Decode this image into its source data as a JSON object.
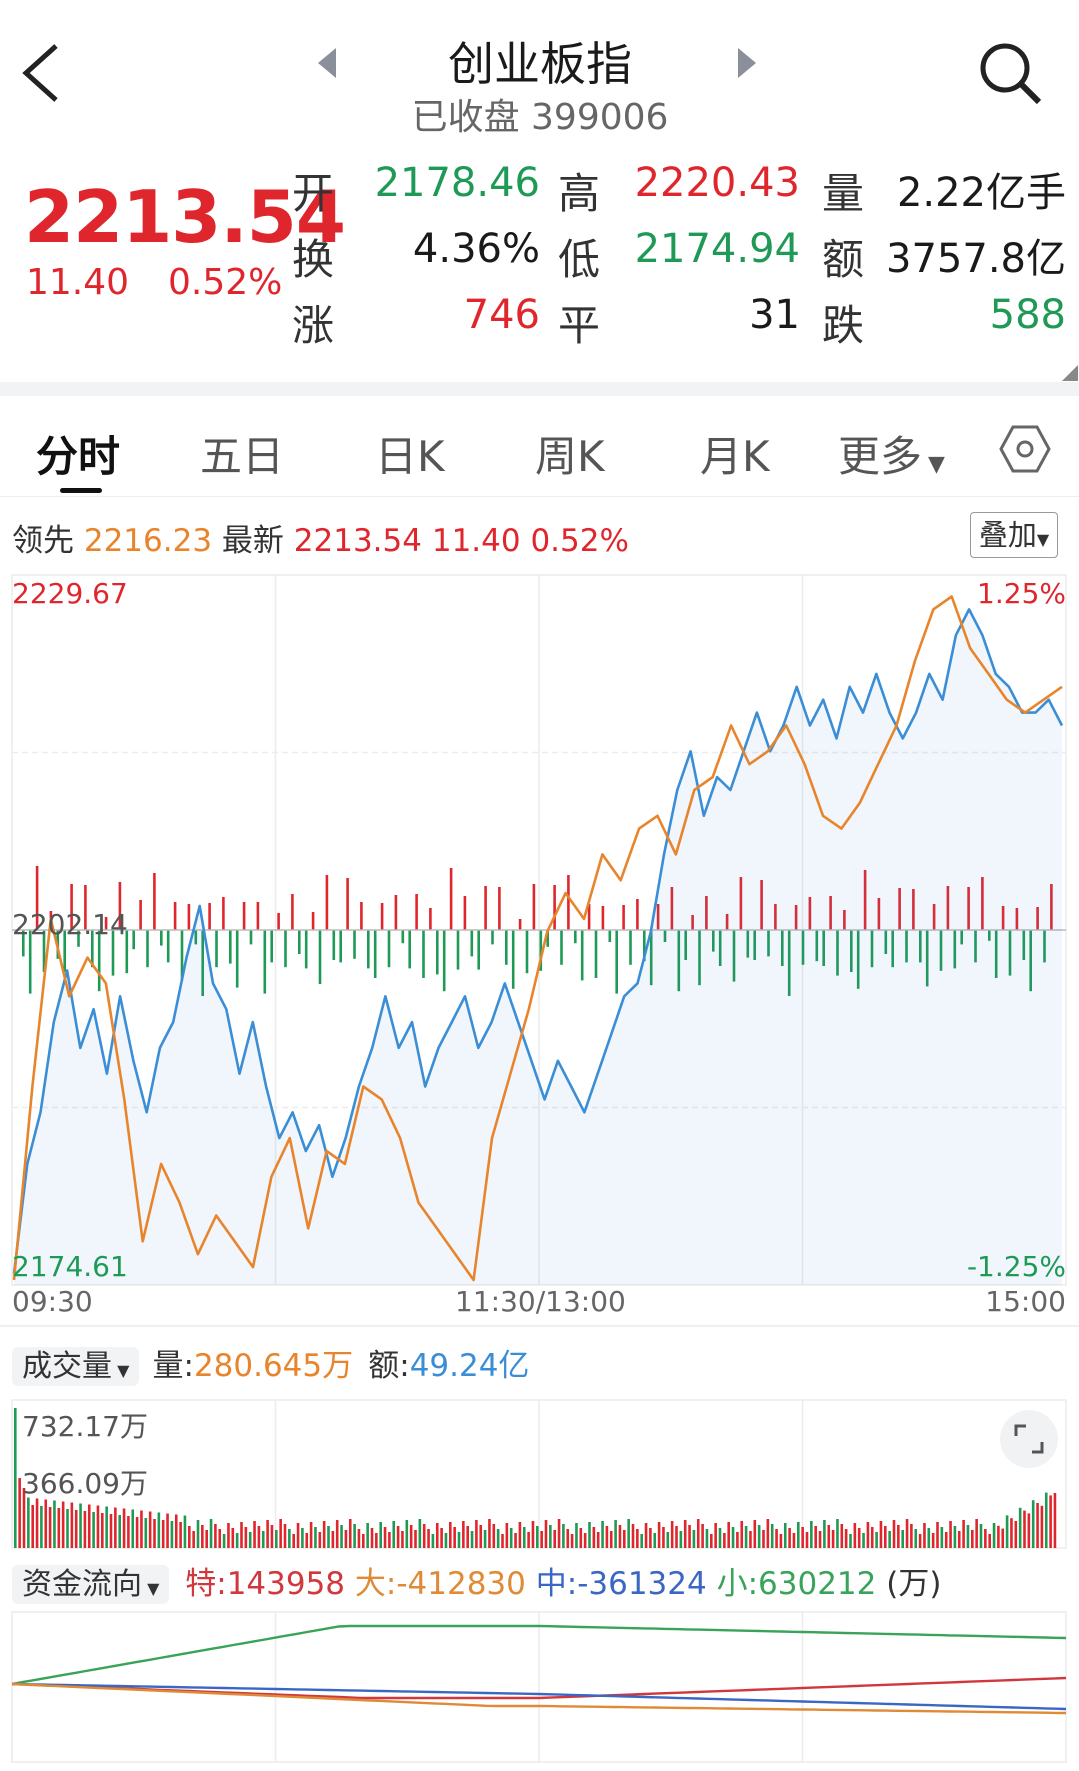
{
  "header": {
    "title": "创业板指",
    "subtitle": "已收盘 399006"
  },
  "quote": {
    "price": "2213.54",
    "change": "11.40",
    "change_pct": "0.52%",
    "labels": {
      "open": "开",
      "high": "高",
      "vol": "量",
      "turnover": "换",
      "low": "低",
      "amount": "额",
      "up": "涨",
      "flat": "平",
      "down": "跌"
    },
    "open": "2178.46",
    "high": "2220.43",
    "volume": "2.22亿手",
    "turnover_rate": "4.36%",
    "low": "2174.94",
    "amount": "3757.8亿",
    "up_count": "746",
    "flat_count": "31",
    "down_count": "588"
  },
  "tabs": [
    "分时",
    "五日",
    "日K",
    "周K",
    "月K",
    "更多"
  ],
  "active_tab": "分时",
  "chart_info": {
    "lead_label": "领先",
    "lead_value": "2216.23",
    "latest_label": "最新",
    "latest_value": "2213.54",
    "change": "11.40",
    "change_pct": "0.52%",
    "overlay_button": "叠加"
  },
  "axes": {
    "price_max": "2229.67",
    "price_min": "2174.61",
    "pct_max": "1.25%",
    "pct_min": "-1.25%",
    "mid_price": "2202.14",
    "time_start": "09:30",
    "time_mid": "11:30/13:00",
    "time_end": "15:00"
  },
  "volume_panel": {
    "selector": "成交量",
    "vol_label": "量:",
    "vol_value": "280.645万",
    "amt_label": "额:",
    "amt_value": "49.24亿",
    "max_label": "732.17万",
    "mid_label": "366.09万"
  },
  "fund_flow": {
    "selector": "资金流向",
    "special": "特:143958",
    "large": "大:-412830",
    "medium": "中:-361324",
    "small": "小:630212",
    "unit": "(万)"
  },
  "colors": {
    "up": "#e0262d",
    "down": "#1f9a56",
    "price_line": "#3b8ed6",
    "avg_line": "#e8852c",
    "fund_green": "#3aa35a",
    "fund_red": "#d1383d",
    "fund_blue": "#3a66c4",
    "fund_orange": "#e08a35"
  },
  "chart_data": {
    "type": "line",
    "ylim": [
      2174.61,
      2229.67
    ],
    "series": [
      {
        "values": [
          2175.5,
          2184,
          2188,
          2195,
          2199,
          2193,
          2196,
          2191,
          2197,
          2192,
          2188,
          2193,
          2195,
          2200,
          2204,
          2198,
          2196,
          2191,
          2195,
          2190,
          2186,
          2188,
          2185,
          2187,
          2183,
          2186,
          2190,
          2193,
          2197,
          2193,
          2195,
          2190,
          2193,
          2195,
          2197,
          2193,
          2195,
          2198,
          2195,
          2192,
          2189,
          2192,
          2190,
          2188,
          2191,
          2194,
          2197,
          2198,
          2202,
          2208,
          2213,
          2216,
          2211,
          2214,
          2213,
          2216,
          2219,
          2216,
          2218,
          2221,
          2218,
          2220,
          2217,
          2221,
          2219,
          2222,
          2219,
          2217,
          2219,
          2222,
          2220,
          2225,
          2227,
          2225,
          2222,
          2221,
          2219,
          2219,
          2220,
          2218
        ]
      },
      {
        "values": [
          2175,
          2190,
          2203,
          2197,
          2200,
          2198,
          2189,
          2178,
          2184,
          2181,
          2177,
          2180,
          2178,
          2176,
          2183,
          2186,
          2179,
          2185,
          2184,
          2190,
          2189,
          2186,
          2181,
          2179,
          2177,
          2175,
          2186,
          2191,
          2196,
          2202,
          2205,
          2203,
          2208,
          2206,
          2210,
          2211,
          2208,
          2213,
          2214,
          2218,
          2215,
          2216,
          2218,
          2215,
          2211,
          2210,
          2212,
          2215,
          2218,
          2223,
          2227,
          2228,
          2224,
          2222,
          2220,
          2219,
          2220,
          2221
        ]
      }
    ]
  }
}
